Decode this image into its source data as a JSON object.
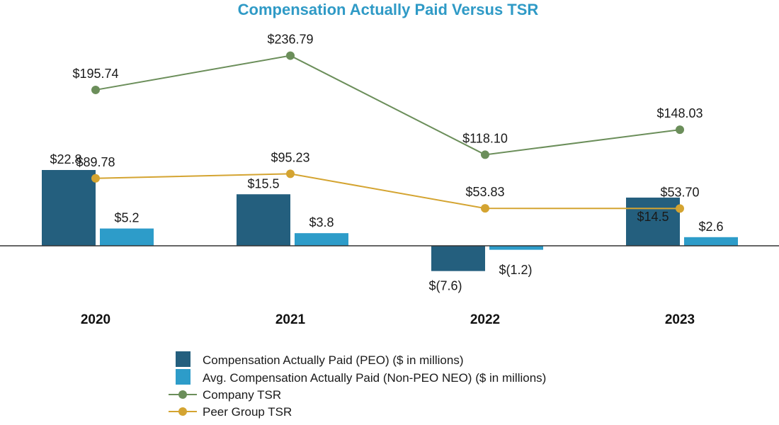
{
  "colors": {
    "title": "#2f9ac6",
    "peo_bar": "#245f7e",
    "neo_bar": "#2d9cc9",
    "company_tsr": "#6b8e5a",
    "peer_tsr": "#d4a431",
    "axis": "#333333",
    "inside_label": "#ffffff"
  },
  "chart_data": {
    "type": "bar",
    "title": "Compensation Actually Paid Versus TSR",
    "categories": [
      "2020",
      "2021",
      "2022",
      "2023"
    ],
    "bar_series": [
      {
        "name": "Compensation Actually Paid (PEO) ($ in millions)",
        "values": [
          22.8,
          15.5,
          -7.6,
          14.5
        ],
        "labels": [
          "$22.8",
          "$15.5",
          "$(7.6)",
          "$14.5"
        ]
      },
      {
        "name": "Avg. Compensation Actually Paid (Non-PEO NEO) ($ in millions)",
        "values": [
          5.2,
          3.8,
          -1.2,
          2.6
        ],
        "labels": [
          "$5.2",
          "$3.8",
          "$(1.2)",
          "$2.6"
        ]
      }
    ],
    "line_series": [
      {
        "name": "Company TSR",
        "values": [
          195.74,
          236.79,
          118.1,
          148.03
        ],
        "labels": [
          "$195.74",
          "$236.79",
          "$118.10",
          "$148.03"
        ]
      },
      {
        "name": "Peer Group TSR",
        "values": [
          89.78,
          95.23,
          53.83,
          53.7
        ],
        "labels": [
          "$89.78",
          "$95.23",
          "$53.83",
          "$53.70"
        ]
      }
    ],
    "legend_position": "bottom-center",
    "grid": false
  }
}
